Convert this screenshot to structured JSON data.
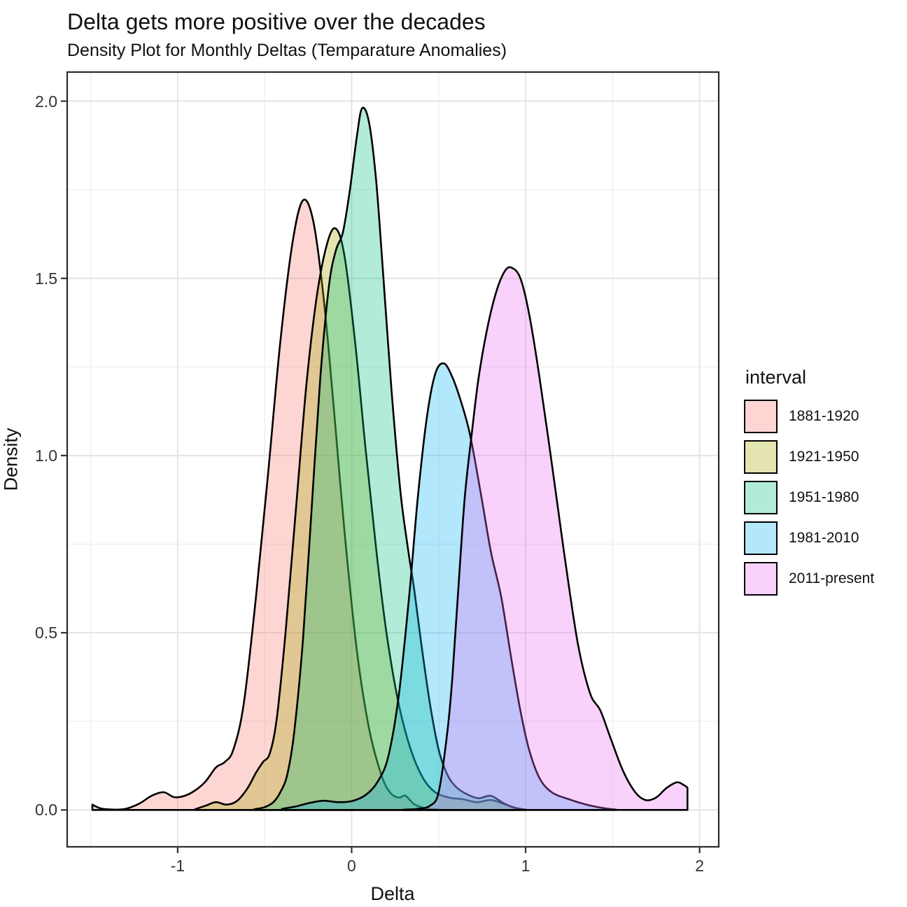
{
  "header": {
    "title": "Delta gets more positive over the decades",
    "subtitle": "Density Plot for Monthly Deltas (Temparature Anomalies)"
  },
  "chart_data": {
    "type": "area",
    "subtype": "density",
    "title": "Delta gets more positive over the decades",
    "subtitle": "Density Plot for Monthly Deltas (Temparature Anomalies)",
    "xlabel": "Delta",
    "ylabel": "Density",
    "xlim": [
      -1.635,
      2.11
    ],
    "ylim": [
      -0.104,
      2.082
    ],
    "grid": true,
    "x_ticks": [
      {
        "value": -1,
        "label": "-1"
      },
      {
        "value": 0,
        "label": "0"
      },
      {
        "value": 1,
        "label": "1"
      },
      {
        "value": 2,
        "label": "2"
      }
    ],
    "y_ticks": [
      {
        "value": 0.0,
        "label": "0.0"
      },
      {
        "value": 0.5,
        "label": "0.5"
      },
      {
        "value": 1.0,
        "label": "1.0"
      },
      {
        "value": 1.5,
        "label": "1.5"
      },
      {
        "value": 2.0,
        "label": "2.0"
      }
    ],
    "x_minor": [
      -1.5,
      -0.5,
      0.5,
      1.5
    ],
    "y_minor": [
      0.25,
      0.75,
      1.25,
      1.75
    ],
    "legend": {
      "title": "interval",
      "position": "right"
    },
    "stroke_color": "#000000",
    "fill_opacity": 0.3,
    "series": [
      {
        "name": "1881-1920",
        "color": "#F8766D",
        "points": [
          [
            -1.49,
            0.015
          ],
          [
            -1.44,
            0.004
          ],
          [
            -1.37,
            0.001
          ],
          [
            -1.3,
            0.003
          ],
          [
            -1.22,
            0.018
          ],
          [
            -1.15,
            0.04
          ],
          [
            -1.08,
            0.05
          ],
          [
            -1.02,
            0.036
          ],
          [
            -0.96,
            0.04
          ],
          [
            -0.9,
            0.055
          ],
          [
            -0.84,
            0.08
          ],
          [
            -0.78,
            0.12
          ],
          [
            -0.73,
            0.135
          ],
          [
            -0.68,
            0.17
          ],
          [
            -0.62,
            0.3
          ],
          [
            -0.55,
            0.6
          ],
          [
            -0.48,
            0.95
          ],
          [
            -0.41,
            1.32
          ],
          [
            -0.34,
            1.6
          ],
          [
            -0.28,
            1.72
          ],
          [
            -0.22,
            1.66
          ],
          [
            -0.16,
            1.44
          ],
          [
            -0.1,
            1.12
          ],
          [
            -0.04,
            0.78
          ],
          [
            0.03,
            0.45
          ],
          [
            0.1,
            0.23
          ],
          [
            0.17,
            0.1
          ],
          [
            0.22,
            0.05
          ],
          [
            0.27,
            0.035
          ],
          [
            0.31,
            0.04
          ],
          [
            0.36,
            0.016
          ],
          [
            0.43,
            0.004
          ],
          [
            0.5,
            0.001
          ]
        ]
      },
      {
        "name": "1921-1950",
        "color": "#A3A500",
        "points": [
          [
            -0.9,
            0.002
          ],
          [
            -0.84,
            0.012
          ],
          [
            -0.78,
            0.022
          ],
          [
            -0.72,
            0.015
          ],
          [
            -0.66,
            0.025
          ],
          [
            -0.6,
            0.06
          ],
          [
            -0.55,
            0.105
          ],
          [
            -0.51,
            0.135
          ],
          [
            -0.47,
            0.16
          ],
          [
            -0.43,
            0.26
          ],
          [
            -0.38,
            0.5
          ],
          [
            -0.32,
            0.85
          ],
          [
            -0.26,
            1.2
          ],
          [
            -0.2,
            1.45
          ],
          [
            -0.14,
            1.6
          ],
          [
            -0.09,
            1.64
          ],
          [
            -0.04,
            1.56
          ],
          [
            0.02,
            1.32
          ],
          [
            0.08,
            1.02
          ],
          [
            0.14,
            0.74
          ],
          [
            0.2,
            0.5
          ],
          [
            0.27,
            0.3
          ],
          [
            0.34,
            0.17
          ],
          [
            0.41,
            0.09
          ],
          [
            0.48,
            0.05
          ],
          [
            0.56,
            0.035
          ],
          [
            0.64,
            0.03
          ],
          [
            0.72,
            0.022
          ],
          [
            0.8,
            0.028
          ],
          [
            0.87,
            0.018
          ],
          [
            0.94,
            0.006
          ],
          [
            1.0,
            0.001
          ]
        ]
      },
      {
        "name": "1951-1980",
        "color": "#00BF7D",
        "points": [
          [
            -0.56,
            0.002
          ],
          [
            -0.5,
            0.008
          ],
          [
            -0.45,
            0.022
          ],
          [
            -0.41,
            0.05
          ],
          [
            -0.37,
            0.1
          ],
          [
            -0.33,
            0.22
          ],
          [
            -0.28,
            0.48
          ],
          [
            -0.23,
            0.85
          ],
          [
            -0.18,
            1.22
          ],
          [
            -0.13,
            1.48
          ],
          [
            -0.09,
            1.58
          ],
          [
            -0.05,
            1.63
          ],
          [
            -0.01,
            1.75
          ],
          [
            0.03,
            1.9
          ],
          [
            0.06,
            1.98
          ],
          [
            0.1,
            1.94
          ],
          [
            0.14,
            1.78
          ],
          [
            0.18,
            1.52
          ],
          [
            0.23,
            1.18
          ],
          [
            0.28,
            0.9
          ],
          [
            0.32,
            0.75
          ],
          [
            0.36,
            0.62
          ],
          [
            0.4,
            0.47
          ],
          [
            0.45,
            0.3
          ],
          [
            0.5,
            0.17
          ],
          [
            0.55,
            0.1
          ],
          [
            0.6,
            0.065
          ],
          [
            0.66,
            0.045
          ],
          [
            0.73,
            0.033
          ],
          [
            0.8,
            0.04
          ],
          [
            0.87,
            0.02
          ],
          [
            0.93,
            0.007
          ],
          [
            0.98,
            0.002
          ]
        ]
      },
      {
        "name": "1981-2010",
        "color": "#00B0F6",
        "points": [
          [
            -0.4,
            0.003
          ],
          [
            -0.32,
            0.01
          ],
          [
            -0.24,
            0.02
          ],
          [
            -0.16,
            0.026
          ],
          [
            -0.08,
            0.022
          ],
          [
            0.0,
            0.025
          ],
          [
            0.08,
            0.042
          ],
          [
            0.15,
            0.08
          ],
          [
            0.21,
            0.15
          ],
          [
            0.27,
            0.32
          ],
          [
            0.33,
            0.6
          ],
          [
            0.38,
            0.88
          ],
          [
            0.43,
            1.1
          ],
          [
            0.48,
            1.23
          ],
          [
            0.53,
            1.26
          ],
          [
            0.58,
            1.22
          ],
          [
            0.63,
            1.15
          ],
          [
            0.68,
            1.06
          ],
          [
            0.74,
            0.9
          ],
          [
            0.8,
            0.73
          ],
          [
            0.86,
            0.6
          ],
          [
            0.92,
            0.42
          ],
          [
            0.97,
            0.28
          ],
          [
            1.02,
            0.17
          ],
          [
            1.08,
            0.09
          ],
          [
            1.15,
            0.05
          ],
          [
            1.25,
            0.03
          ],
          [
            1.35,
            0.015
          ],
          [
            1.45,
            0.005
          ],
          [
            1.52,
            0.001
          ]
        ]
      },
      {
        "name": "2011-present",
        "color": "#E76BF3",
        "points": [
          [
            0.3,
            0.001
          ],
          [
            0.38,
            0.003
          ],
          [
            0.45,
            0.012
          ],
          [
            0.5,
            0.05
          ],
          [
            0.55,
            0.22
          ],
          [
            0.58,
            0.38
          ],
          [
            0.61,
            0.6
          ],
          [
            0.65,
            0.88
          ],
          [
            0.69,
            1.06
          ],
          [
            0.73,
            1.22
          ],
          [
            0.78,
            1.36
          ],
          [
            0.83,
            1.46
          ],
          [
            0.88,
            1.52
          ],
          [
            0.92,
            1.53
          ],
          [
            0.97,
            1.5
          ],
          [
            1.02,
            1.4
          ],
          [
            1.08,
            1.22
          ],
          [
            1.15,
            0.98
          ],
          [
            1.22,
            0.73
          ],
          [
            1.3,
            0.47
          ],
          [
            1.37,
            0.33
          ],
          [
            1.43,
            0.28
          ],
          [
            1.49,
            0.2
          ],
          [
            1.56,
            0.11
          ],
          [
            1.63,
            0.05
          ],
          [
            1.69,
            0.028
          ],
          [
            1.75,
            0.035
          ],
          [
            1.81,
            0.062
          ],
          [
            1.87,
            0.078
          ],
          [
            1.91,
            0.07
          ],
          [
            1.93,
            0.063
          ]
        ]
      }
    ]
  }
}
